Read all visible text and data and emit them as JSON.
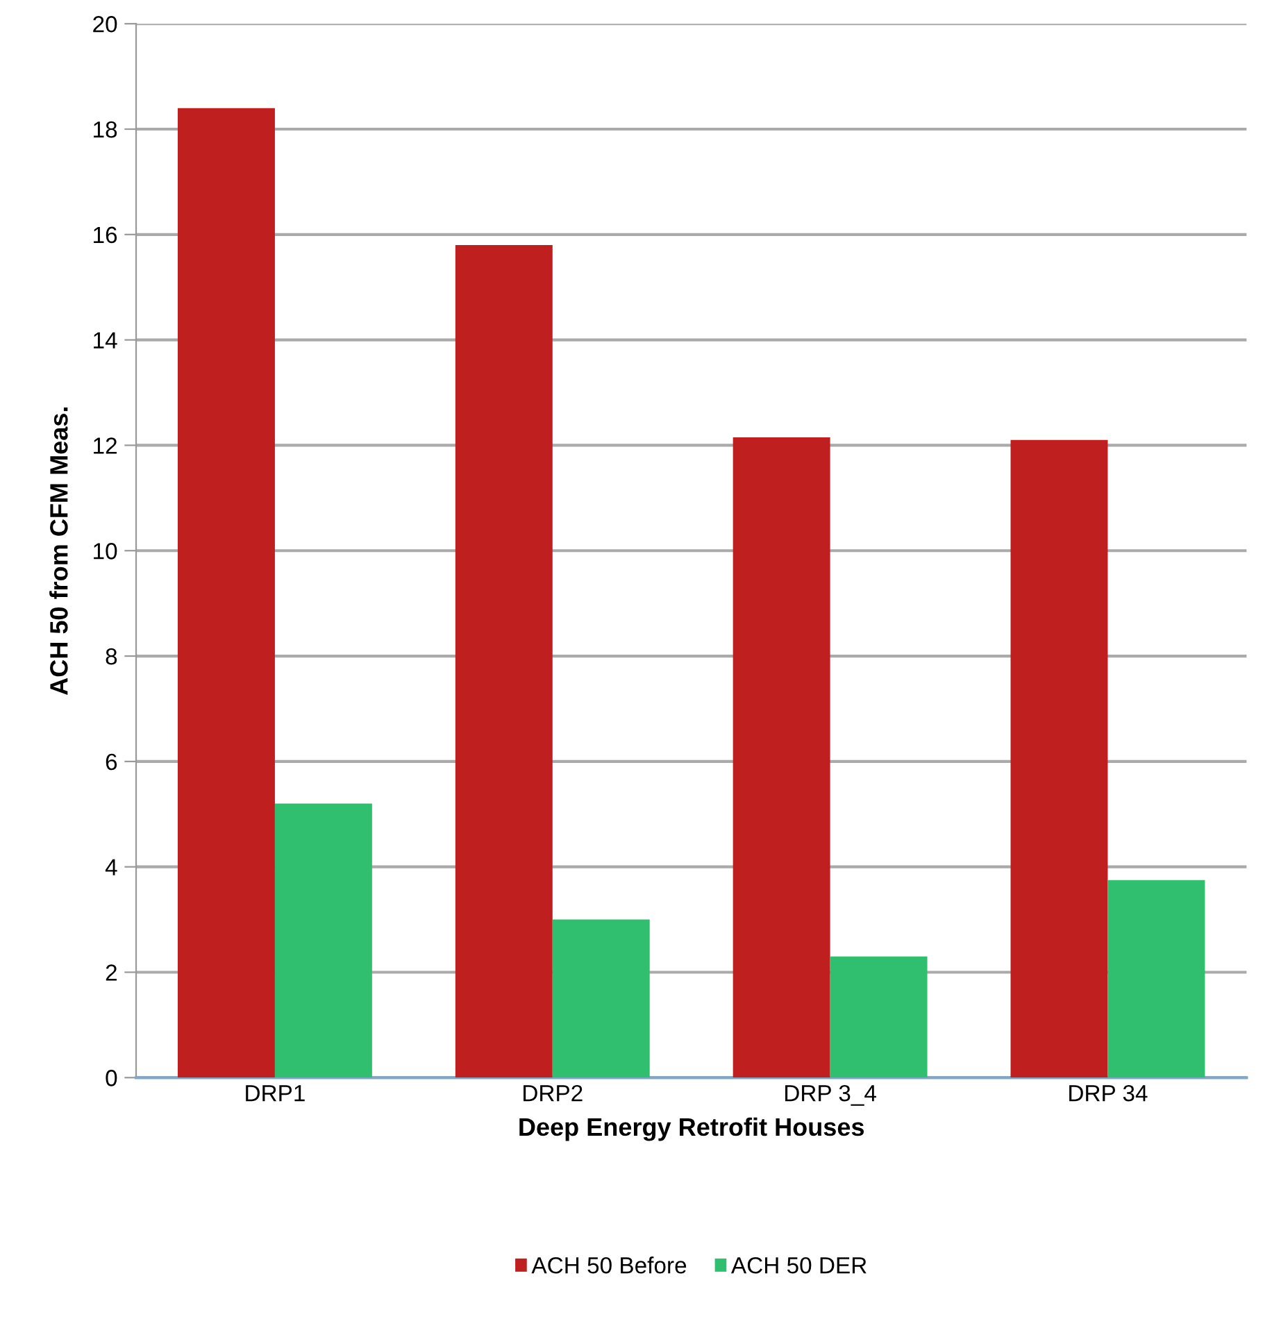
{
  "chart_data": {
    "type": "bar",
    "xlabel": "Deep Energy Retrofit Houses",
    "ylabel": "ACH 50 from CFM Meas.",
    "categories": [
      "DRP1",
      "DRP2",
      "DRP 3_4",
      "DRP 34"
    ],
    "series": [
      {
        "name": "ACH 50 Before",
        "color": "#c01f1f",
        "values": [
          18.4,
          15.8,
          12.15,
          12.1
        ]
      },
      {
        "name": "ACH 50 DER",
        "color": "#2fbf6f",
        "values": [
          5.2,
          3.0,
          2.3,
          3.75
        ]
      }
    ],
    "ylim": [
      0,
      20
    ],
    "yticks": [
      0,
      2,
      4,
      6,
      8,
      10,
      12,
      14,
      16,
      18,
      20
    ],
    "grid": "y",
    "legend": "bottom"
  }
}
